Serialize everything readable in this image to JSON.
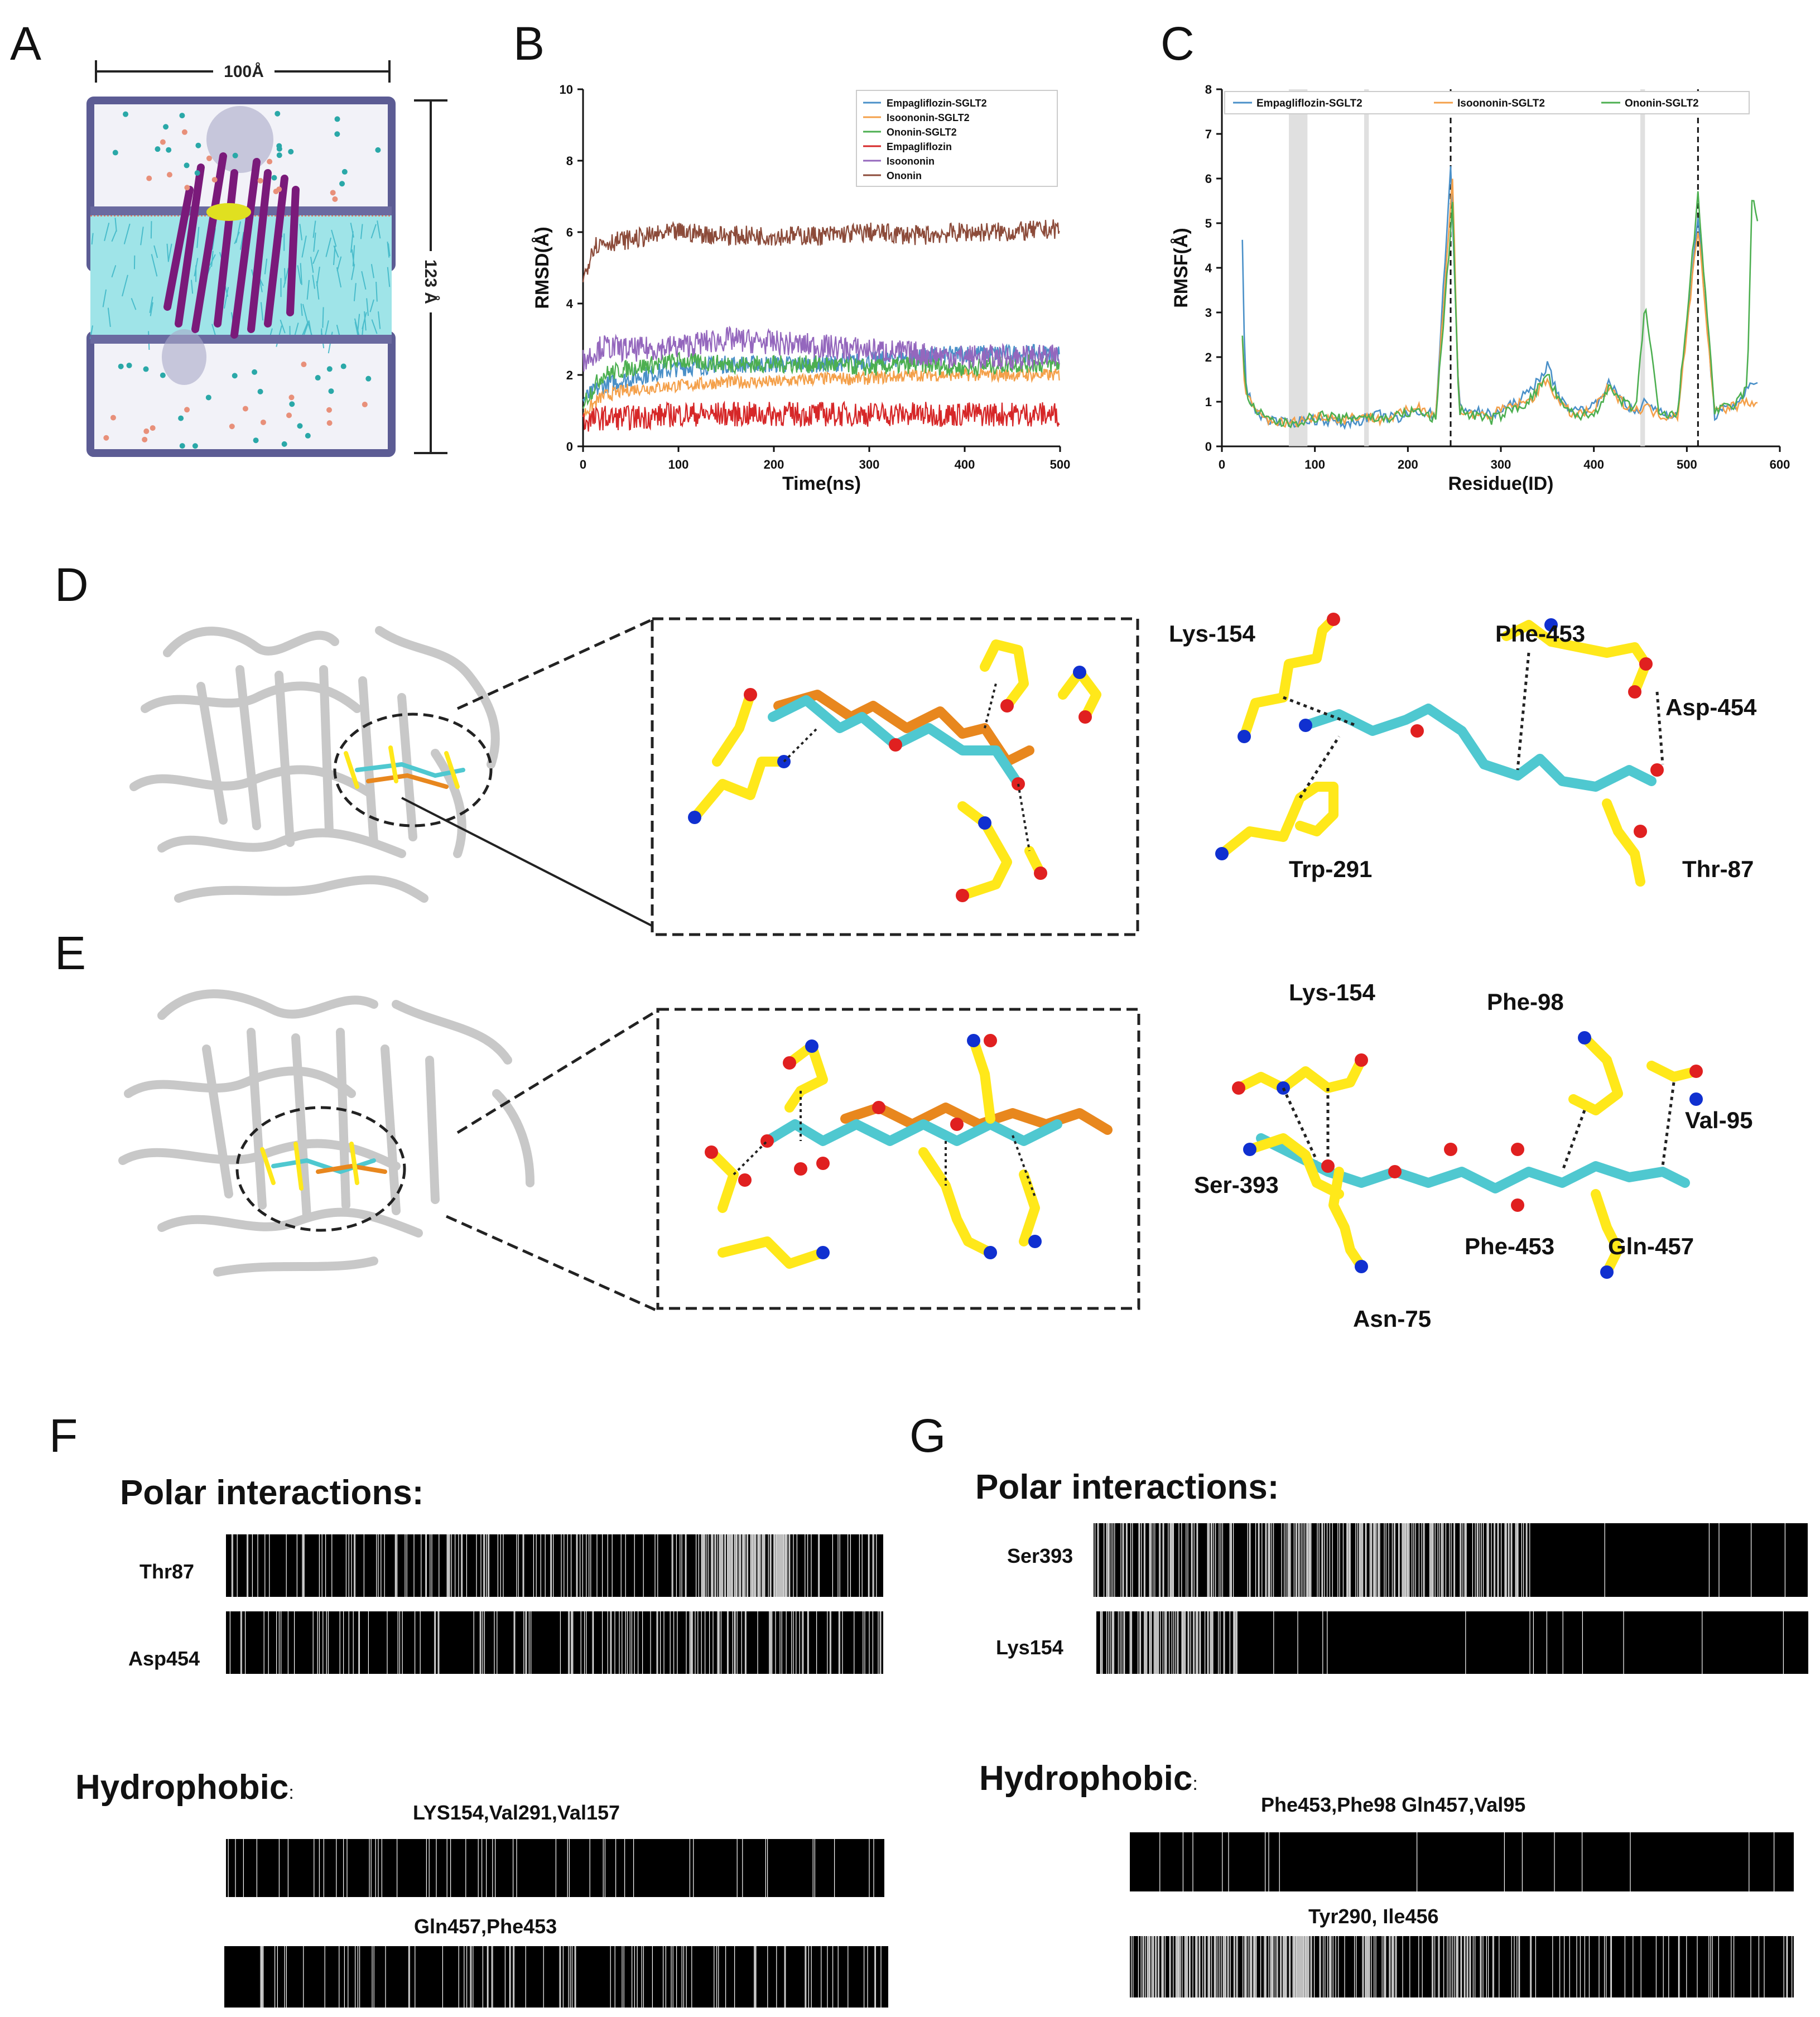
{
  "panels": {
    "A": "A",
    "B": "B",
    "C": "C",
    "D": "D",
    "E": "E",
    "F": "F",
    "G": "G"
  },
  "panelA": {
    "width_label": "100Å",
    "height_label": "123 Å"
  },
  "colors": {
    "empagliflozin_sglt2": "#4a90c8",
    "isoononin_sglt2": "#f4a04a",
    "ononin_sglt2": "#4caf50",
    "empagliflozin": "#d62728",
    "isoononin": "#9467bd",
    "ononin": "#8c4b3a",
    "ligand_cyan": "#4fc8d0",
    "residue_yellow": "#ffe81a",
    "ref_orange": "#e8871e",
    "membrane_frame": "#6a6aa0"
  },
  "panelD": {
    "residues": [
      "Lys-154",
      "Phe-453",
      "Asp-454",
      "Trp-291",
      "Thr-87"
    ]
  },
  "panelE": {
    "residues": [
      "Lys-154",
      "Phe-98",
      "Val-95",
      "Ser-393",
      "Phe-453",
      "Gln-457",
      "Asn-75"
    ]
  },
  "panelF": {
    "polar_title": "Polar interactions:",
    "polar_rows": [
      "Thr87",
      "Asp454"
    ],
    "hydro_title": "Hydrophobic",
    "hydro_colon": ":",
    "hydro_captions": [
      "LYS154,Val291,Val157",
      "Gln457,Phe453"
    ]
  },
  "panelG": {
    "polar_title": "Polar interactions:",
    "polar_rows": [
      "Ser393",
      "Lys154"
    ],
    "hydro_title": "Hydrophobic",
    "hydro_colon": ":",
    "hydro_captions": [
      "Phe453,Phe98 Gln457,Val95",
      "Tyr290, Ile456"
    ]
  },
  "chart_data": [
    {
      "type": "line",
      "panel": "B",
      "xlabel": "Time(ns)",
      "ylabel": "RMSD(Å)",
      "xlim": [
        0,
        500
      ],
      "ylim": [
        0,
        10
      ],
      "xticks": [
        0,
        100,
        200,
        300,
        400,
        500
      ],
      "yticks": [
        0,
        2,
        4,
        6,
        8,
        10
      ],
      "legend_position": "top-right",
      "series": [
        {
          "name": "Empagliflozin-SGLT2",
          "color_key": "empagliflozin_sglt2",
          "x": [
            0,
            20,
            50,
            100,
            150,
            200,
            250,
            300,
            350,
            400,
            450,
            500
          ],
          "y": [
            1.3,
            1.7,
            1.9,
            2.2,
            2.3,
            2.3,
            2.3,
            2.4,
            2.5,
            2.6,
            2.6,
            2.6
          ]
        },
        {
          "name": "Isoononin-SGLT2",
          "color_key": "isoononin_sglt2",
          "x": [
            0,
            20,
            50,
            100,
            150,
            200,
            250,
            300,
            350,
            400,
            450,
            500
          ],
          "y": [
            0.9,
            1.4,
            1.6,
            1.7,
            1.8,
            1.8,
            1.9,
            1.9,
            2.0,
            2.0,
            2.0,
            2.0
          ]
        },
        {
          "name": "Ononin-SGLT2",
          "color_key": "ononin_sglt2",
          "x": [
            0,
            20,
            50,
            100,
            150,
            200,
            250,
            300,
            350,
            400,
            450,
            500
          ],
          "y": [
            1.2,
            2.0,
            2.2,
            2.4,
            2.3,
            2.3,
            2.3,
            2.2,
            2.3,
            2.2,
            2.3,
            2.3
          ]
        },
        {
          "name": "Empagliflozin",
          "color_key": "empagliflozin",
          "x": [
            0,
            20,
            50,
            100,
            150,
            200,
            250,
            300,
            350,
            400,
            450,
            500
          ],
          "y": [
            0.7,
            0.8,
            0.8,
            0.9,
            0.9,
            0.9,
            0.9,
            0.9,
            0.9,
            0.9,
            0.9,
            0.9
          ]
        },
        {
          "name": "Isoononin",
          "color_key": "isoononin",
          "x": [
            0,
            20,
            50,
            100,
            150,
            200,
            250,
            300,
            350,
            400,
            450,
            500
          ],
          "y": [
            2.4,
            2.8,
            2.7,
            2.8,
            3.0,
            2.9,
            2.8,
            2.7,
            2.6,
            2.5,
            2.5,
            2.5
          ]
        },
        {
          "name": "Ononin",
          "color_key": "ononin",
          "x": [
            0,
            10,
            20,
            50,
            100,
            150,
            200,
            250,
            300,
            350,
            400,
            450,
            500
          ],
          "y": [
            4.6,
            5.6,
            5.7,
            5.8,
            6.0,
            5.9,
            5.9,
            5.9,
            6.0,
            5.9,
            6.0,
            6.0,
            6.1
          ]
        }
      ]
    },
    {
      "type": "line",
      "panel": "C",
      "xlabel": "Residue(ID)",
      "ylabel": "RMSF(Å)",
      "xlim": [
        0,
        600
      ],
      "ylim": [
        0,
        8
      ],
      "xticks": [
        0,
        100,
        200,
        300,
        400,
        500,
        600
      ],
      "yticks": [
        0,
        1,
        2,
        3,
        4,
        5,
        6,
        7,
        8
      ],
      "legend_position": "top",
      "shaded_regions": [
        [
          72,
          92
        ],
        [
          153,
          158
        ],
        [
          450,
          455
        ]
      ],
      "dashed_lines": [
        246,
        512
      ],
      "series": [
        {
          "name": "Empagliflozin-SGLT2",
          "color_key": "empagliflozin_sglt2",
          "x": [
            22,
            25,
            35,
            50,
            70,
            90,
            110,
            130,
            150,
            170,
            190,
            210,
            230,
            246,
            255,
            270,
            290,
            310,
            330,
            350,
            365,
            380,
            400,
            415,
            430,
            445,
            455,
            470,
            490,
            512,
            530,
            550,
            570,
            576
          ],
          "y": [
            4.6,
            1.4,
            0.8,
            0.6,
            0.5,
            0.6,
            0.6,
            0.5,
            0.6,
            0.7,
            0.6,
            0.8,
            0.7,
            6.3,
            0.9,
            0.8,
            0.7,
            0.9,
            1.2,
            1.8,
            1.0,
            0.8,
            0.9,
            1.4,
            1.1,
            0.7,
            1.0,
            0.8,
            0.7,
            5.1,
            0.7,
            0.9,
            1.4,
            1.4
          ]
        },
        {
          "name": "Isoononin-SGLT2",
          "color_key": "isoononin_sglt2",
          "x": [
            22,
            25,
            35,
            50,
            70,
            90,
            110,
            130,
            150,
            170,
            190,
            210,
            230,
            248,
            255,
            270,
            290,
            310,
            330,
            350,
            365,
            380,
            400,
            415,
            430,
            445,
            455,
            470,
            490,
            512,
            530,
            550,
            570,
            576
          ],
          "y": [
            2.4,
            1.2,
            0.8,
            0.6,
            0.5,
            0.6,
            0.7,
            0.6,
            0.7,
            0.6,
            0.7,
            0.9,
            0.7,
            6.0,
            0.8,
            0.7,
            0.7,
            0.9,
            1.0,
            1.5,
            0.9,
            0.7,
            0.8,
            1.3,
            1.0,
            0.8,
            0.9,
            0.7,
            0.7,
            4.9,
            0.8,
            0.9,
            1.0,
            1.0
          ]
        },
        {
          "name": "Ononin-SGLT2",
          "color_key": "ononin_sglt2",
          "x": [
            22,
            25,
            35,
            50,
            70,
            90,
            110,
            130,
            150,
            170,
            190,
            210,
            230,
            248,
            255,
            270,
            290,
            310,
            330,
            350,
            365,
            380,
            400,
            415,
            430,
            445,
            455,
            470,
            490,
            512,
            530,
            550,
            565,
            570,
            576
          ],
          "y": [
            2.4,
            1.3,
            0.8,
            0.6,
            0.5,
            0.6,
            0.7,
            0.6,
            0.7,
            0.6,
            0.7,
            0.8,
            0.6,
            5.4,
            0.8,
            0.7,
            0.6,
            0.8,
            1.0,
            1.6,
            0.9,
            0.7,
            0.7,
            1.3,
            1.0,
            0.8,
            3.2,
            0.7,
            0.7,
            5.6,
            0.8,
            0.9,
            1.3,
            5.6,
            5.0
          ]
        }
      ]
    }
  ]
}
